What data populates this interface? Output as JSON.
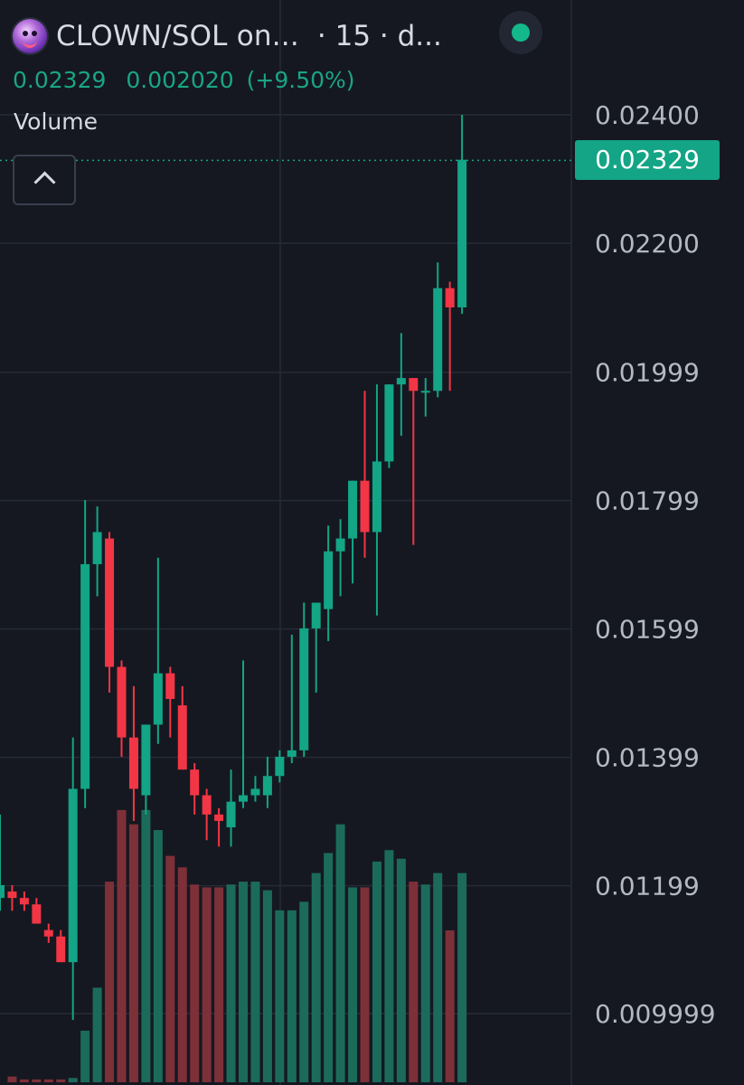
{
  "header": {
    "symbol": "CLOWN/SOL on...",
    "timeframe": "· 15 · d...",
    "logo_icon": "clown-token-logo",
    "status_icon": "live-status-dot"
  },
  "ohlc": {
    "close": "0.02329",
    "change": "0.002020",
    "change_pct": "(+9.50%)"
  },
  "volume_label": "Volume",
  "last_price_label": "0.02329",
  "colors": {
    "background": "#151821",
    "up": "#13a585",
    "down": "#f23645",
    "up_volume": "#1c6b5a",
    "down_volume": "#7d3038",
    "grid": "#262a36"
  },
  "chart_data": {
    "type": "candlestick",
    "y_axis": {
      "ticks": [
        "0.02400",
        "0.02200",
        "0.01999",
        "0.01799",
        "0.01599",
        "0.01399",
        "0.01199",
        "0.009999"
      ],
      "tick_values": [
        0.024,
        0.022,
        0.01999,
        0.01799,
        0.01599,
        0.01399,
        0.01199,
        0.009999
      ],
      "range": [
        0.0088,
        0.0248
      ]
    },
    "last_price": 0.02329,
    "candles": [
      {
        "o": 0.0118,
        "h": 0.0131,
        "l": 0.0116,
        "c": 0.012
      },
      {
        "o": 0.0119,
        "h": 0.012,
        "l": 0.0116,
        "c": 0.0118
      },
      {
        "o": 0.0118,
        "h": 0.0119,
        "l": 0.0116,
        "c": 0.0117
      },
      {
        "o": 0.0117,
        "h": 0.0118,
        "l": 0.0114,
        "c": 0.0114
      },
      {
        "o": 0.0113,
        "h": 0.0114,
        "l": 0.0111,
        "c": 0.0112
      },
      {
        "o": 0.0112,
        "h": 0.0113,
        "l": 0.0108,
        "c": 0.0108
      },
      {
        "o": 0.0108,
        "h": 0.0143,
        "l": 0.0099,
        "c": 0.0135
      },
      {
        "o": 0.0135,
        "h": 0.018,
        "l": 0.0132,
        "c": 0.017
      },
      {
        "o": 0.017,
        "h": 0.0179,
        "l": 0.0165,
        "c": 0.0175
      },
      {
        "o": 0.0174,
        "h": 0.0175,
        "l": 0.015,
        "c": 0.0154
      },
      {
        "o": 0.0154,
        "h": 0.0155,
        "l": 0.014,
        "c": 0.0143
      },
      {
        "o": 0.0143,
        "h": 0.0151,
        "l": 0.013,
        "c": 0.0135
      },
      {
        "o": 0.0134,
        "h": 0.0145,
        "l": 0.0131,
        "c": 0.0145
      },
      {
        "o": 0.0145,
        "h": 0.0171,
        "l": 0.0142,
        "c": 0.0153
      },
      {
        "o": 0.0153,
        "h": 0.0154,
        "l": 0.0143,
        "c": 0.0149
      },
      {
        "o": 0.0148,
        "h": 0.0151,
        "l": 0.0138,
        "c": 0.0138
      },
      {
        "o": 0.0138,
        "h": 0.0139,
        "l": 0.0131,
        "c": 0.0134
      },
      {
        "o": 0.0134,
        "h": 0.0135,
        "l": 0.0127,
        "c": 0.0131
      },
      {
        "o": 0.0131,
        "h": 0.0132,
        "l": 0.0126,
        "c": 0.013
      },
      {
        "o": 0.0129,
        "h": 0.0138,
        "l": 0.0126,
        "c": 0.0133
      },
      {
        "o": 0.0133,
        "h": 0.0155,
        "l": 0.0132,
        "c": 0.0134
      },
      {
        "o": 0.0134,
        "h": 0.0137,
        "l": 0.0133,
        "c": 0.0135
      },
      {
        "o": 0.0134,
        "h": 0.014,
        "l": 0.0132,
        "c": 0.0137
      },
      {
        "o": 0.0137,
        "h": 0.0141,
        "l": 0.0136,
        "c": 0.014
      },
      {
        "o": 0.014,
        "h": 0.0159,
        "l": 0.0139,
        "c": 0.0141
      },
      {
        "o": 0.0141,
        "h": 0.0164,
        "l": 0.014,
        "c": 0.016
      },
      {
        "o": 0.016,
        "h": 0.0164,
        "l": 0.015,
        "c": 0.0164
      },
      {
        "o": 0.0163,
        "h": 0.0176,
        "l": 0.0158,
        "c": 0.0172
      },
      {
        "o": 0.0172,
        "h": 0.0177,
        "l": 0.0165,
        "c": 0.0174
      },
      {
        "o": 0.0174,
        "h": 0.0183,
        "l": 0.0167,
        "c": 0.0183
      },
      {
        "o": 0.0183,
        "h": 0.0197,
        "l": 0.0171,
        "c": 0.0175
      },
      {
        "o": 0.0175,
        "h": 0.0198,
        "l": 0.0162,
        "c": 0.0186
      },
      {
        "o": 0.0186,
        "h": 0.0198,
        "l": 0.0185,
        "c": 0.0198
      },
      {
        "o": 0.0198,
        "h": 0.0206,
        "l": 0.019,
        "c": 0.0199
      },
      {
        "o": 0.0199,
        "h": 0.0199,
        "l": 0.0173,
        "c": 0.0197
      },
      {
        "o": 0.0197,
        "h": 0.0199,
        "l": 0.0193,
        "c": 0.0197
      },
      {
        "o": 0.0197,
        "h": 0.0217,
        "l": 0.0196,
        "c": 0.0213
      },
      {
        "o": 0.0213,
        "h": 0.0214,
        "l": 0.0197,
        "c": 0.021
      },
      {
        "o": 0.021,
        "h": 0.024,
        "l": 0.0209,
        "c": 0.0233
      }
    ],
    "volume": [
      2.0,
      1.0,
      1.0,
      1.0,
      1.0,
      1.5,
      18,
      33,
      70,
      95,
      90,
      95,
      88,
      79,
      75,
      69,
      68,
      68,
      69,
      70,
      70,
      67,
      60,
      60,
      63,
      73,
      80,
      90,
      68,
      68,
      77,
      81,
      78,
      70,
      69,
      73,
      53,
      73,
      50
    ]
  }
}
